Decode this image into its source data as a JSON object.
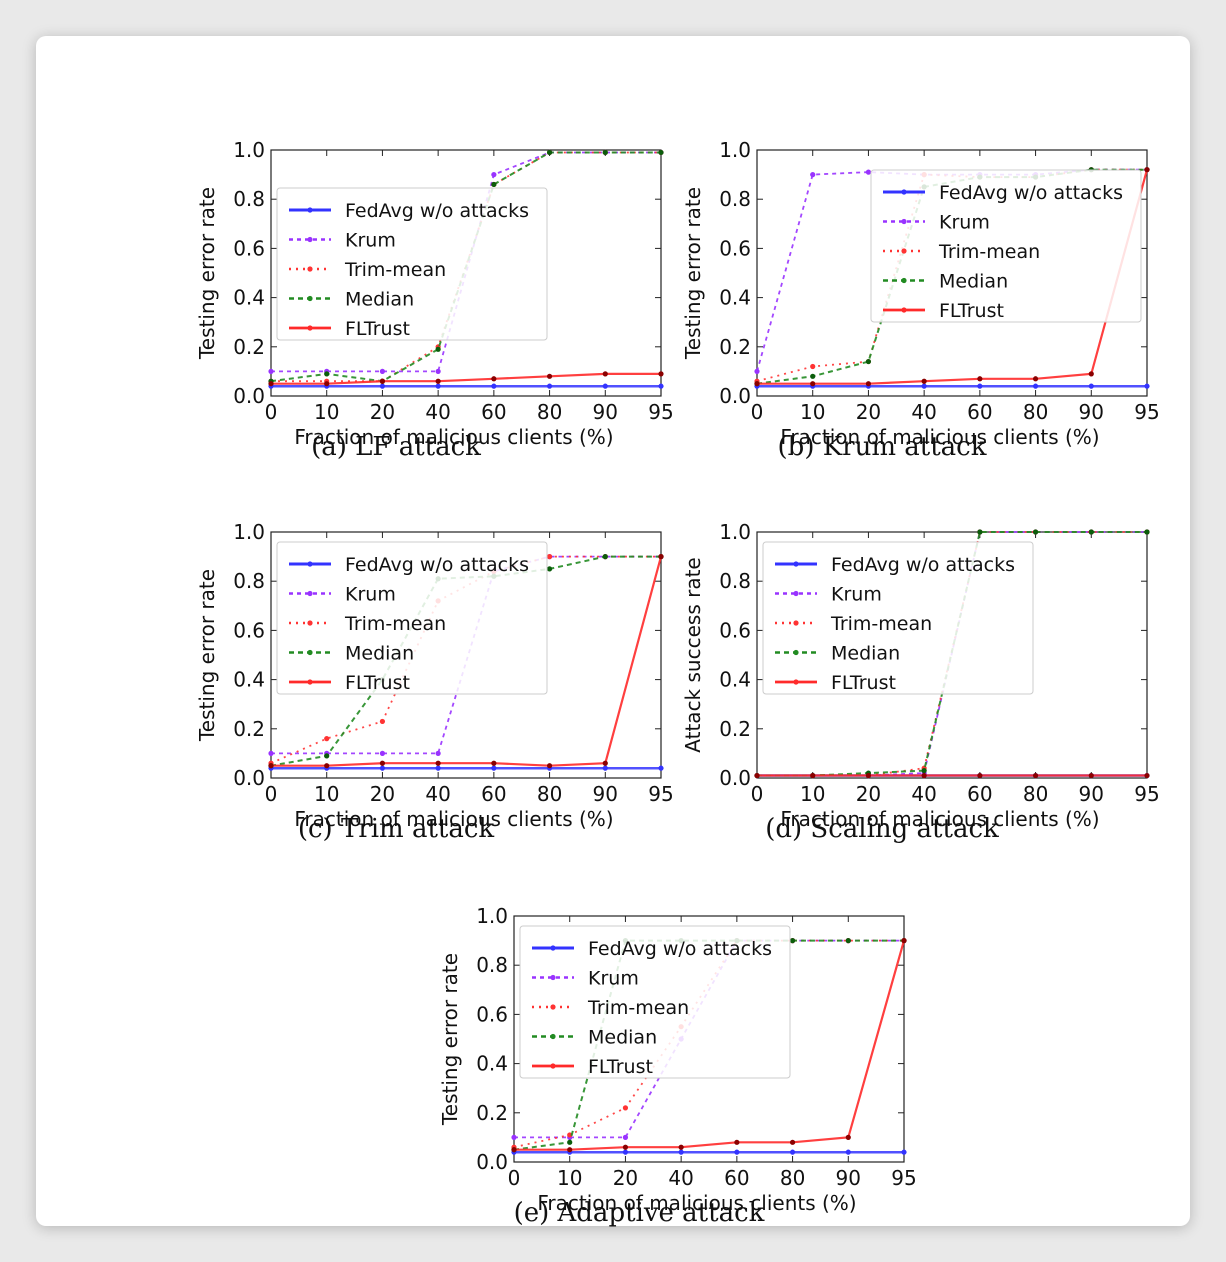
{
  "colors": {
    "fedavg": "#3333ff",
    "krum": "#9933ff",
    "trim": "#ff3333",
    "median": "#228b22",
    "fltrust": "#ff2a2a"
  },
  "chart_data": [
    {
      "type": "line",
      "caption": "(a) LF attack",
      "xlabel": "Fraction of malicious clients (%)",
      "ylabel": "Testing error rate",
      "categories": [
        "0",
        "10",
        "20",
        "40",
        "60",
        "80",
        "90",
        "95"
      ],
      "ylim": [
        0,
        1.0
      ],
      "yticks": [
        "0.0",
        "0.2",
        "0.4",
        "0.6",
        "0.8",
        "1.0"
      ],
      "legend_position": "center-left",
      "series": [
        {
          "name": "FedAvg w/o attacks",
          "values": [
            0.04,
            0.04,
            0.04,
            0.04,
            0.04,
            0.04,
            0.04,
            0.04
          ]
        },
        {
          "name": "Krum",
          "values": [
            0.1,
            0.1,
            0.1,
            0.1,
            0.9,
            0.99,
            0.99,
            0.99
          ]
        },
        {
          "name": "Trim-mean",
          "values": [
            0.06,
            0.06,
            0.06,
            0.2,
            0.86,
            0.99,
            0.99,
            0.99
          ]
        },
        {
          "name": "Median",
          "values": [
            0.06,
            0.09,
            0.06,
            0.19,
            0.86,
            0.99,
            0.99,
            0.99
          ]
        },
        {
          "name": "FLTrust",
          "values": [
            0.05,
            0.05,
            0.06,
            0.06,
            0.07,
            0.08,
            0.09,
            0.09
          ]
        }
      ]
    },
    {
      "type": "line",
      "caption": "(b) Krum attack",
      "xlabel": "Fraction of malicious clients (%)",
      "ylabel": "Testing error rate",
      "categories": [
        "0",
        "10",
        "20",
        "40",
        "60",
        "80",
        "90",
        "95"
      ],
      "ylim": [
        0,
        1.0
      ],
      "yticks": [
        "0.0",
        "0.2",
        "0.4",
        "0.6",
        "0.8",
        "1.0"
      ],
      "legend_position": "center-right",
      "series": [
        {
          "name": "FedAvg w/o attacks",
          "values": [
            0.04,
            0.04,
            0.04,
            0.04,
            0.04,
            0.04,
            0.04,
            0.04
          ]
        },
        {
          "name": "Krum",
          "values": [
            0.1,
            0.9,
            0.91,
            0.9,
            0.9,
            0.9,
            0.92,
            0.92
          ]
        },
        {
          "name": "Trim-mean",
          "values": [
            0.06,
            0.12,
            0.14,
            0.9,
            0.89,
            0.89,
            0.92,
            0.92
          ]
        },
        {
          "name": "Median",
          "values": [
            0.05,
            0.08,
            0.14,
            0.85,
            0.89,
            0.89,
            0.92,
            0.92
          ]
        },
        {
          "name": "FLTrust",
          "values": [
            0.05,
            0.05,
            0.05,
            0.06,
            0.07,
            0.07,
            0.09,
            0.92
          ]
        }
      ]
    },
    {
      "type": "line",
      "caption": "(c) Trim attack",
      "xlabel": "Fraction of malicious clients (%)",
      "ylabel": "Testing error rate",
      "categories": [
        "0",
        "10",
        "20",
        "40",
        "60",
        "80",
        "90",
        "95"
      ],
      "ylim": [
        0,
        1.0
      ],
      "yticks": [
        "0.0",
        "0.2",
        "0.4",
        "0.6",
        "0.8",
        "1.0"
      ],
      "legend_position": "top-left",
      "series": [
        {
          "name": "FedAvg w/o attacks",
          "values": [
            0.04,
            0.04,
            0.04,
            0.04,
            0.04,
            0.04,
            0.04,
            0.04
          ]
        },
        {
          "name": "Krum",
          "values": [
            0.1,
            0.1,
            0.1,
            0.1,
            0.84,
            0.9,
            0.9,
            0.9
          ]
        },
        {
          "name": "Trim-mean",
          "values": [
            0.06,
            0.16,
            0.23,
            0.72,
            0.84,
            0.9,
            0.9,
            0.9
          ]
        },
        {
          "name": "Median",
          "values": [
            0.05,
            0.09,
            0.4,
            0.81,
            0.82,
            0.85,
            0.9,
            0.9
          ]
        },
        {
          "name": "FLTrust",
          "values": [
            0.05,
            0.05,
            0.06,
            0.06,
            0.06,
            0.05,
            0.06,
            0.9
          ]
        }
      ]
    },
    {
      "type": "line",
      "caption": "(d) Scaling attack",
      "xlabel": "Fraction of malicious clients (%)",
      "ylabel": "Attack success rate",
      "categories": [
        "0",
        "10",
        "20",
        "40",
        "60",
        "80",
        "90",
        "95"
      ],
      "ylim": [
        0,
        1.0
      ],
      "yticks": [
        "0.0",
        "0.2",
        "0.4",
        "0.6",
        "0.8",
        "1.0"
      ],
      "legend_position": "top-left",
      "series": [
        {
          "name": "FedAvg w/o attacks",
          "values": [
            0.01,
            0.01,
            0.01,
            0.01,
            0.01,
            0.01,
            0.01,
            0.01
          ]
        },
        {
          "name": "Krum",
          "values": [
            0.01,
            0.01,
            0.01,
            0.02,
            1.0,
            1.0,
            1.0,
            1.0
          ]
        },
        {
          "name": "Trim-mean",
          "values": [
            0.01,
            0.01,
            0.01,
            0.04,
            1.0,
            1.0,
            1.0,
            1.0
          ]
        },
        {
          "name": "Median",
          "values": [
            0.01,
            0.01,
            0.02,
            0.03,
            1.0,
            1.0,
            1.0,
            1.0
          ]
        },
        {
          "name": "FLTrust",
          "values": [
            0.01,
            0.01,
            0.01,
            0.01,
            0.01,
            0.01,
            0.01,
            0.01
          ]
        }
      ]
    },
    {
      "type": "line",
      "caption": "(e) Adaptive attack",
      "xlabel": "Fraction of malicious clients (%)",
      "ylabel": "Testing error rate",
      "categories": [
        "0",
        "10",
        "20",
        "40",
        "60",
        "80",
        "90",
        "95"
      ],
      "ylim": [
        0,
        1.0
      ],
      "yticks": [
        "0.0",
        "0.2",
        "0.4",
        "0.6",
        "0.8",
        "1.0"
      ],
      "legend_position": "top-left",
      "series": [
        {
          "name": "FedAvg w/o attacks",
          "values": [
            0.04,
            0.04,
            0.04,
            0.04,
            0.04,
            0.04,
            0.04,
            0.04
          ]
        },
        {
          "name": "Krum",
          "values": [
            0.1,
            0.1,
            0.1,
            0.5,
            0.9,
            0.9,
            0.9,
            0.9
          ]
        },
        {
          "name": "Trim-mean",
          "values": [
            0.06,
            0.11,
            0.22,
            0.55,
            0.9,
            0.9,
            0.9,
            0.9
          ]
        },
        {
          "name": "Median",
          "values": [
            0.05,
            0.08,
            0.9,
            0.9,
            0.9,
            0.9,
            0.9,
            0.9
          ]
        },
        {
          "name": "FLTrust",
          "values": [
            0.05,
            0.05,
            0.06,
            0.06,
            0.08,
            0.08,
            0.1,
            0.9
          ]
        }
      ]
    }
  ]
}
